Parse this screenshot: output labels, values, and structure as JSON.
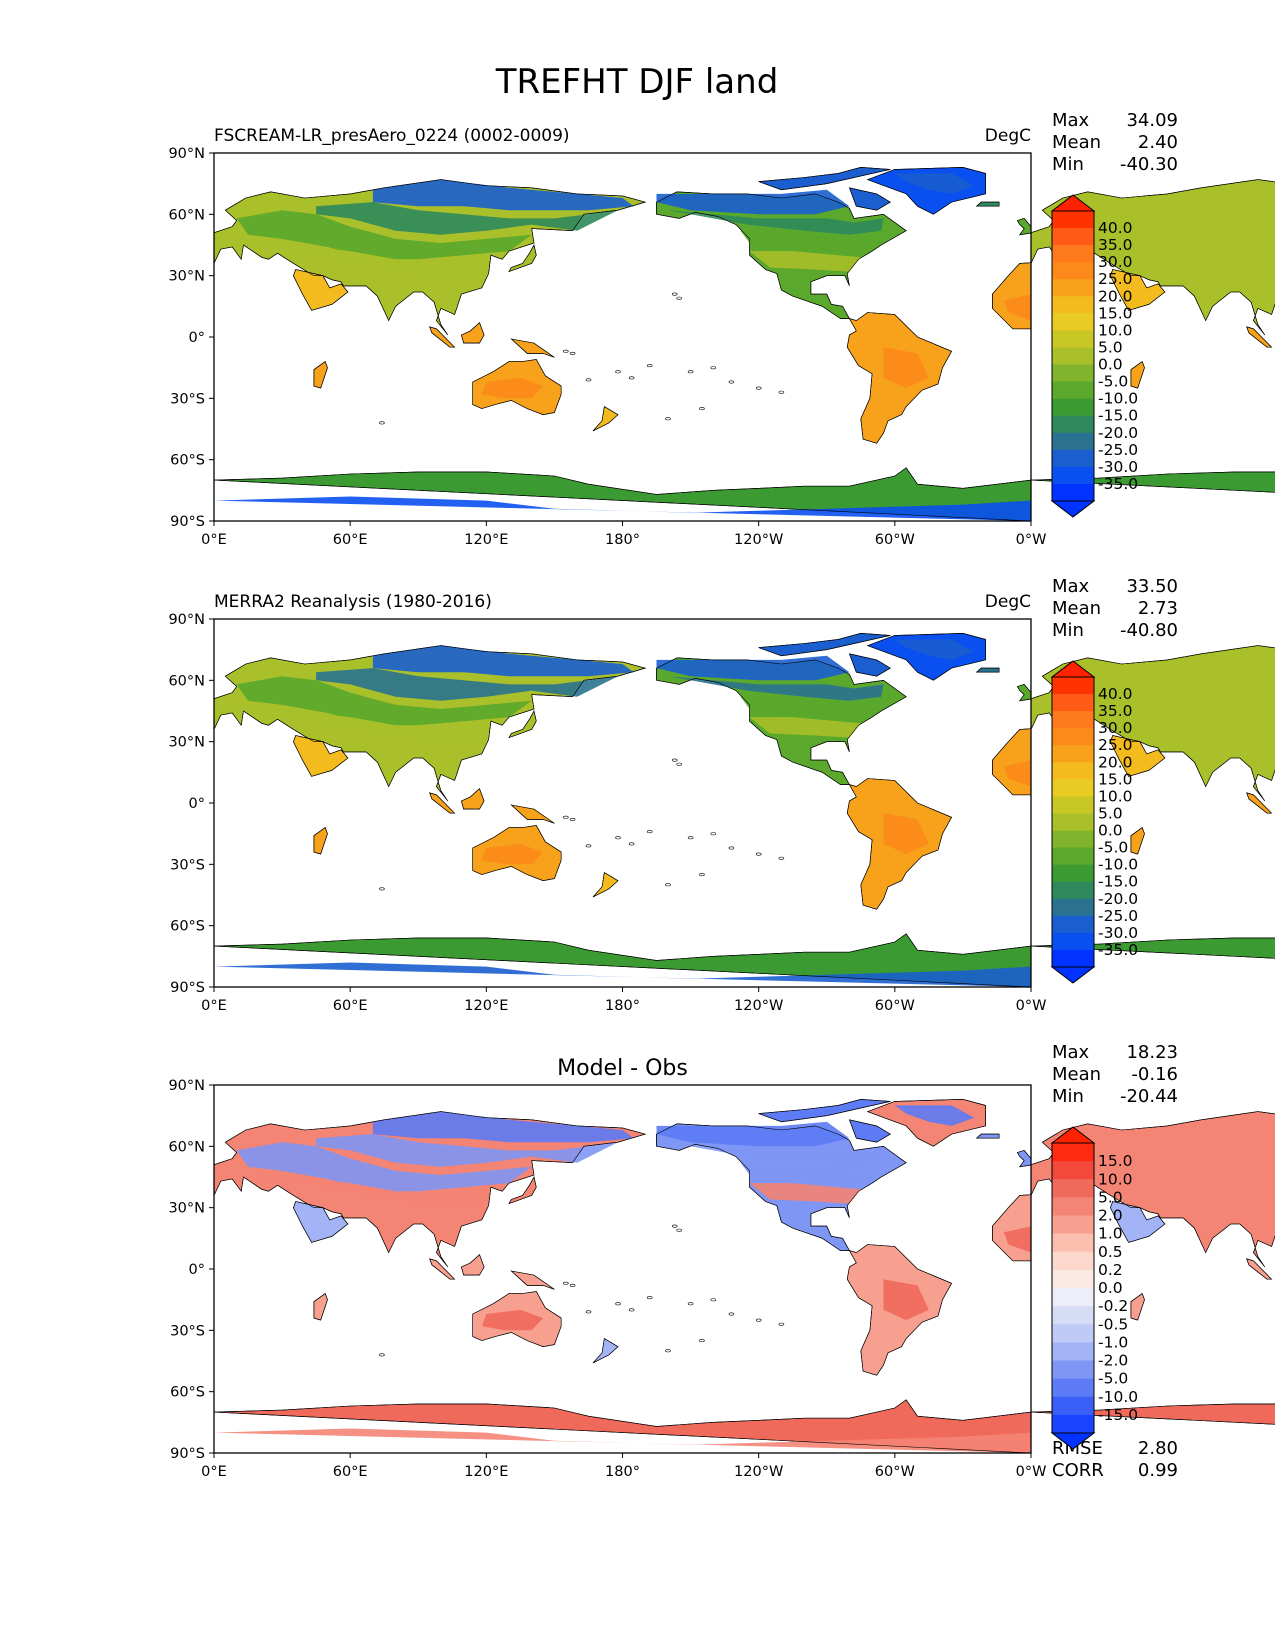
{
  "title": "TREFHT DJF land",
  "lat_ticks": [
    "90°N",
    "60°N",
    "30°N",
    "0°",
    "30°S",
    "60°S",
    "90°S"
  ],
  "lon_ticks": [
    "0°E",
    "60°E",
    "120°E",
    "180°",
    "120°W",
    "60°W",
    "0°W"
  ],
  "stat_labels": {
    "max": "Max",
    "mean": "Mean",
    "min": "Min",
    "rmse": "RMSE",
    "corr": "CORR"
  },
  "panels": [
    {
      "id": "test",
      "left_title": "FSCREAM-LR_presAero_0224 (0002-0009)",
      "center_title": "",
      "units": "DegC",
      "stats": {
        "max": "34.09",
        "mean": "2.40",
        "min": "-40.30"
      },
      "colorbar": {
        "labels": [
          "40.0",
          "35.0",
          "30.0",
          "25.0",
          "20.0",
          "15.0",
          "10.0",
          "5.0",
          "0.0",
          "-5.0",
          "-10.0",
          "-15.0",
          "-20.0",
          "-25.0",
          "-30.0",
          "-35.0"
        ],
        "colors": [
          "#ff3300",
          "#ff5a16",
          "#ff7a1c",
          "#fb8a1a",
          "#f7a21a",
          "#f3bb1e",
          "#e8cc24",
          "#c9c726",
          "#a9c02a",
          "#7fb42c",
          "#5aa82c",
          "#3c9a32",
          "#2e8a5c",
          "#2a7290",
          "#1a5ed0",
          "#0a4ff0",
          "#0033ff"
        ],
        "extend_colors": {
          "top": "#ff2200",
          "bottom": "#0033ff"
        }
      }
    },
    {
      "id": "ref",
      "left_title": "MERRA2 Reanalysis (1980-2016)",
      "center_title": "",
      "units": "DegC",
      "stats": {
        "max": "33.50",
        "mean": "2.73",
        "min": "-40.80"
      },
      "colorbar": {
        "labels": [
          "40.0",
          "35.0",
          "30.0",
          "25.0",
          "20.0",
          "15.0",
          "10.0",
          "5.0",
          "0.0",
          "-5.0",
          "-10.0",
          "-15.0",
          "-20.0",
          "-25.0",
          "-30.0",
          "-35.0"
        ],
        "colors": [
          "#ff3300",
          "#ff5a16",
          "#ff7a1c",
          "#fb8a1a",
          "#f7a21a",
          "#f3bb1e",
          "#e8cc24",
          "#c9c726",
          "#a9c02a",
          "#7fb42c",
          "#5aa82c",
          "#3c9a32",
          "#2e8a5c",
          "#2a7290",
          "#1a5ed0",
          "#0a4ff0",
          "#0033ff"
        ],
        "extend_colors": {
          "top": "#ff2200",
          "bottom": "#0033ff"
        }
      }
    },
    {
      "id": "diff",
      "left_title": "",
      "center_title": "Model - Obs",
      "units": "",
      "stats": {
        "max": "18.23",
        "mean": "-0.16",
        "min": "-20.44"
      },
      "extra_stats": {
        "rmse": "2.80",
        "corr": "0.99"
      },
      "colorbar": {
        "labels": [
          "15.0",
          "10.0",
          "5.0",
          "2.0",
          "1.0",
          "0.5",
          "0.2",
          "0.0",
          "-0.2",
          "-0.5",
          "-1.0",
          "-2.0",
          "-5.0",
          "-10.0",
          "-15.0"
        ],
        "colors": [
          "#ff2a10",
          "#f2493a",
          "#f06a5c",
          "#f48474",
          "#f8a090",
          "#fbbfb0",
          "#fcd7cc",
          "#fbeae4",
          "#edeef8",
          "#d6dcf6",
          "#bfcaf6",
          "#a2b3f6",
          "#7f96f4",
          "#5c7bf4",
          "#3a5ff6",
          "#1a44ff"
        ],
        "extend_colors": {
          "top": "#ff2200",
          "bottom": "#0033ff"
        }
      }
    }
  ],
  "land_colors": {
    "test": {
      "tropics": "#f7a21a",
      "tropics_hot": "#fb8a1a",
      "subtropics": "#f3bb1e",
      "midlat": "#a9c02a",
      "cool": "#5aa82c",
      "cold": "#2e8a5c",
      "frigid": "#1a5ed0",
      "antarctic_coast": "#3c9a32",
      "antarctic_interior": "#0a4ff0",
      "greenland": "#0a4ff0"
    },
    "ref": {
      "tropics": "#f7a21a",
      "tropics_hot": "#fb8a1a",
      "subtropics": "#f3bb1e",
      "midlat": "#a9c02a",
      "cool": "#5aa82c",
      "cold": "#2a7290",
      "frigid": "#1a5ed0",
      "antarctic_coast": "#3c9a32",
      "antarctic_interior": "#1a5ed0",
      "greenland": "#0a4ff0"
    },
    "diff": {
      "tropics": "#f8a090",
      "tropics_hot": "#f06a5c",
      "subtropics": "#a2b3f6",
      "midlat": "#f48474",
      "cool": "#7f96f4",
      "cold": "#7f96f4",
      "frigid": "#5c7bf4",
      "antarctic_coast": "#f06a5c",
      "antarctic_interior": "#f48474",
      "greenland": "#f48474"
    }
  }
}
